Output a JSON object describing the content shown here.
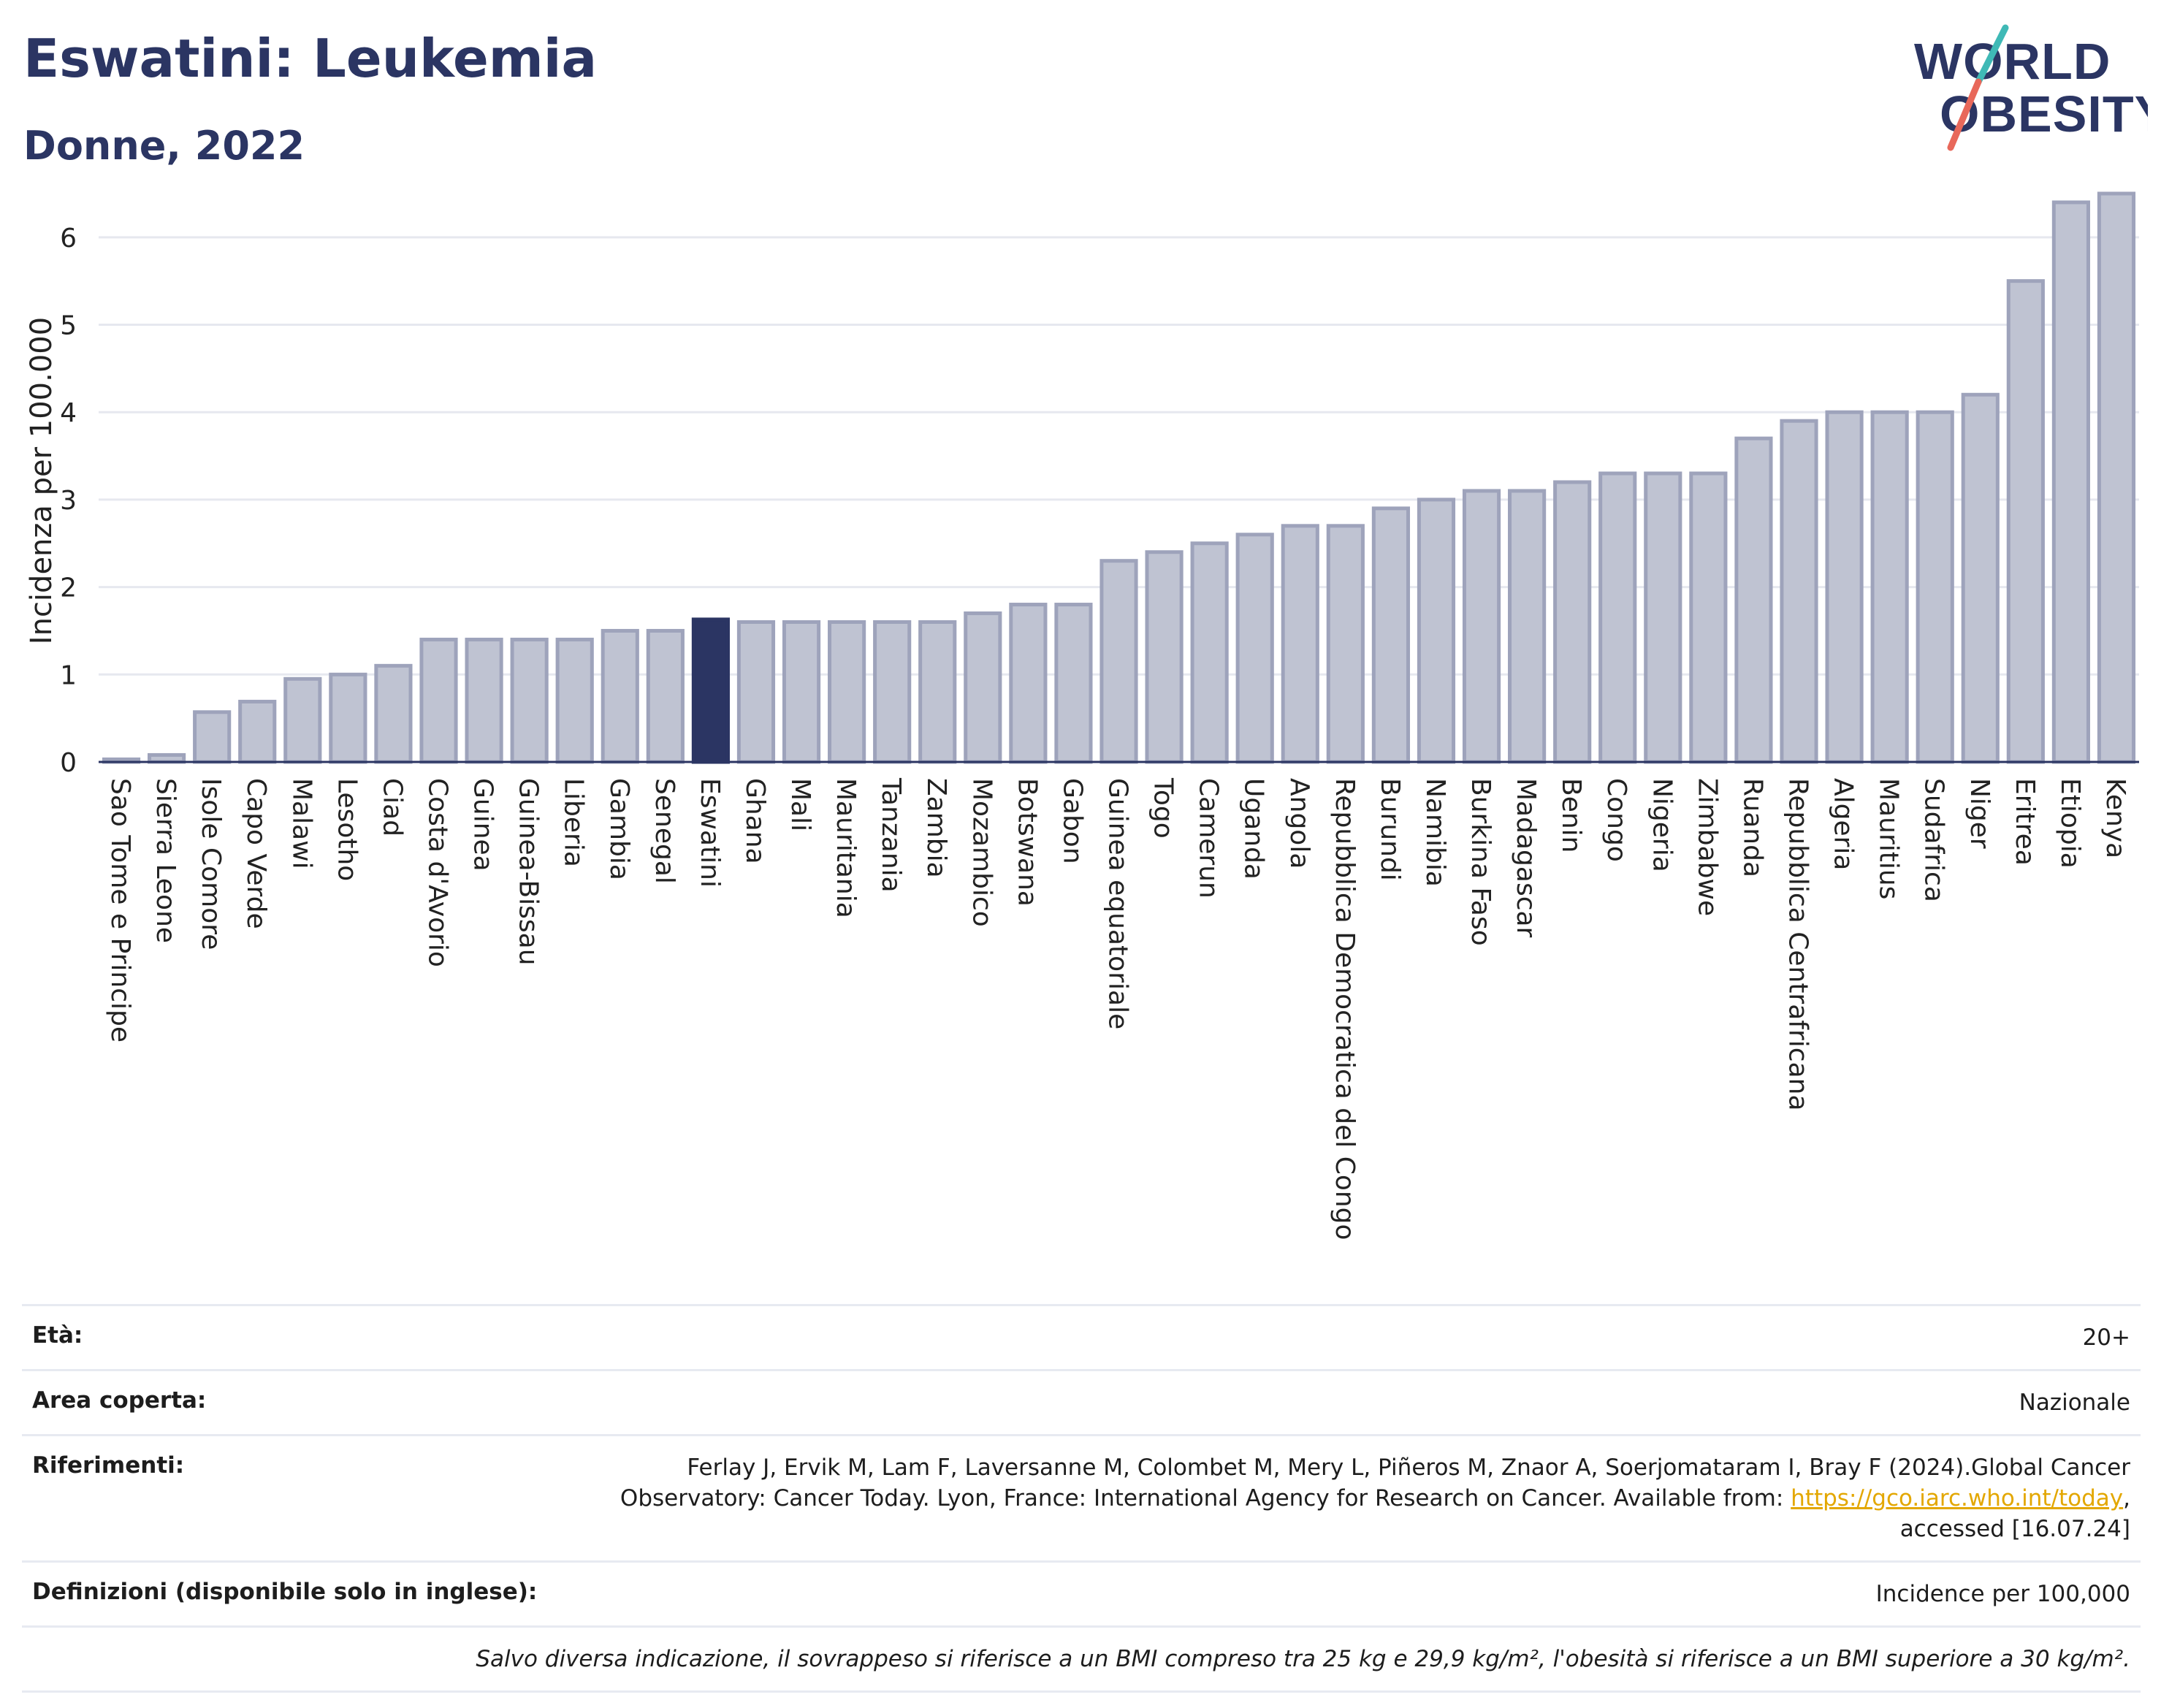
{
  "header": {
    "title": "Eswatini: Leukemia",
    "subtitle": "Donne, 2022"
  },
  "logo": {
    "line1": "WORLD",
    "line2": "OBESITY",
    "colors": {
      "text": "#2b3563",
      "slash_top": "#3fb9b6",
      "slash_bottom": "#e8685a"
    }
  },
  "colors": {
    "bar": "#bfc3d2",
    "bar_edge": "#9ea3bb",
    "highlight": "#2b3563",
    "grid": "#e6e8ef",
    "axis": "#2b3563"
  },
  "chart_data": {
    "type": "bar",
    "ylabel": "Incidenza per 100.000",
    "ylim": [
      0,
      6.6
    ],
    "yticks": [
      0,
      1,
      2,
      3,
      4,
      5,
      6
    ],
    "grid": true,
    "highlight": "Eswatini",
    "categories": [
      "Sao Tome e Principe",
      "Sierra Leone",
      "Isole Comore",
      "Capo Verde",
      "Malawi",
      "Lesotho",
      "Ciad",
      "Costa d'Avorio",
      "Guinea",
      "Guinea-Bissau",
      "Liberia",
      "Gambia",
      "Senegal",
      "Eswatini",
      "Ghana",
      "Mali",
      "Mauritania",
      "Tanzania",
      "Zambia",
      "Mozambico",
      "Botswana",
      "Gabon",
      "Guinea equatoriale",
      "Togo",
      "Camerun",
      "Uganda",
      "Angola",
      "Repubblica Democratica del Congo",
      "Burundi",
      "Namibia",
      "Burkina Faso",
      "Madagascar",
      "Benin",
      "Congo",
      "Nigeria",
      "Zimbabwe",
      "Ruanda",
      "Repubblica Centrafricana",
      "Algeria",
      "Mauritius",
      "Sudafrica",
      "Niger",
      "Eritrea",
      "Etiopia",
      "Kenya"
    ],
    "values": [
      0.03,
      0.08,
      0.57,
      0.69,
      0.95,
      1.0,
      1.1,
      1.4,
      1.4,
      1.4,
      1.4,
      1.5,
      1.5,
      1.63,
      1.6,
      1.6,
      1.6,
      1.6,
      1.6,
      1.7,
      1.8,
      1.8,
      2.3,
      2.4,
      2.5,
      2.6,
      2.7,
      2.7,
      2.9,
      3.0,
      3.1,
      3.1,
      3.2,
      3.3,
      3.3,
      3.3,
      3.7,
      3.9,
      4.0,
      4.0,
      4.0,
      4.2,
      5.5,
      6.4,
      6.5
    ]
  },
  "info": {
    "age_label": "Età:",
    "age_value": "20+",
    "area_label": "Area coperta:",
    "area_value": "Nazionale",
    "refs_label": "Riferimenti:",
    "refs_text1": "Ferlay J, Ervik M, Lam F, Laversanne M, Colombet M, Mery L, Piñeros M, Znaor A, Soerjomataram I, Bray F (2024).Global Cancer Observatory: Cancer Today. Lyon, France: International Agency for Research on Cancer. Available from: ",
    "refs_link": "https://gco.iarc.who.int/today",
    "refs_text2": ", accessed [16.07.24]",
    "def_label": "Definizioni (disponibile solo in inglese):",
    "def_value": "Incidence per 100,000",
    "note": "Salvo diversa indicazione, il sovrappeso si riferisce a un BMI compreso tra 25 kg e 29,9 kg/m², l'obesità si riferisce a un BMI superiore a 30 kg/m²."
  }
}
